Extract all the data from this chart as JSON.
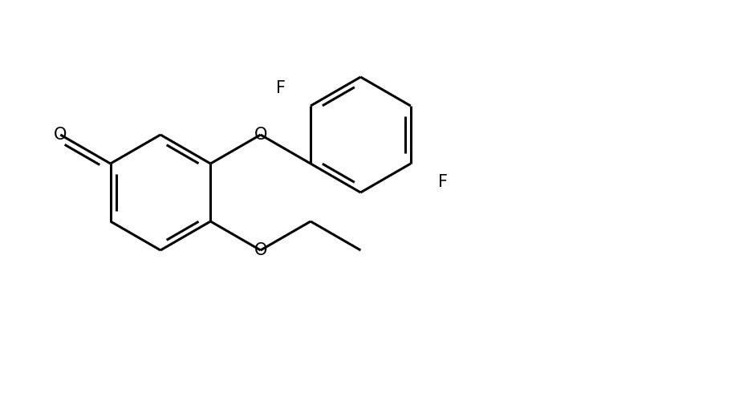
{
  "background_color": "#ffffff",
  "line_color": "#000000",
  "line_width": 2.2,
  "font_size": 15,
  "fig_width": 9.16,
  "fig_height": 4.9,
  "dpi": 100,
  "xlim": [
    0,
    9.16
  ],
  "ylim": [
    0,
    4.9
  ]
}
